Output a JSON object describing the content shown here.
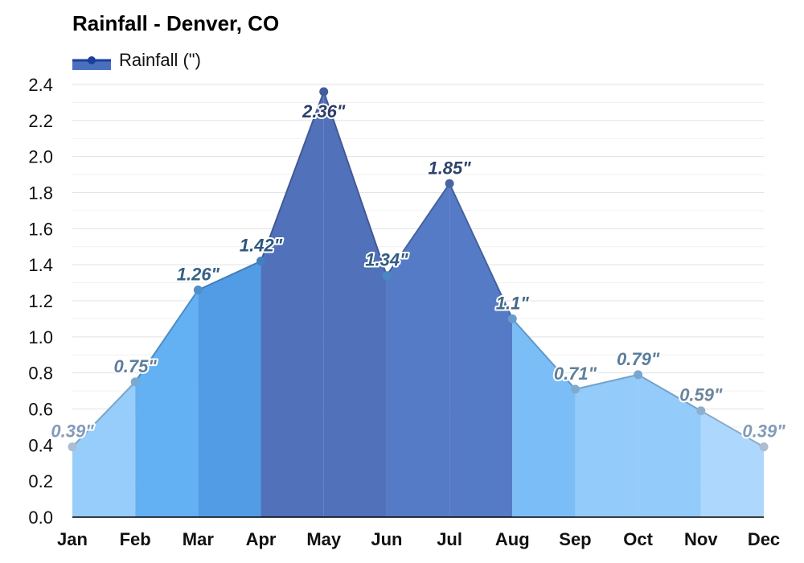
{
  "chart_data": {
    "type": "area",
    "title": "Rainfall - Denver, CO",
    "legend": {
      "label": "Rainfall (\")",
      "placement": "top-left"
    },
    "categories": [
      "Jan",
      "Feb",
      "Mar",
      "Apr",
      "May",
      "Jun",
      "Jul",
      "Aug",
      "Sep",
      "Oct",
      "Nov",
      "Dec"
    ],
    "series": [
      {
        "name": "Rainfall (\")",
        "values": [
          0.39,
          0.75,
          1.26,
          1.42,
          2.36,
          1.34,
          1.85,
          1.1,
          0.71,
          0.79,
          0.59,
          0.39
        ],
        "labels": [
          "0.39\"",
          "0.75\"",
          "1.26\"",
          "1.42\"",
          "2.36\"",
          "1.34\"",
          "1.85\"",
          "1.1\"",
          "0.71\"",
          "0.79\"",
          "0.59\"",
          "0.39\""
        ]
      }
    ],
    "yticks": [
      "0.0",
      "0.2",
      "0.4",
      "0.6",
      "0.8",
      "1.0",
      "1.2",
      "1.4",
      "1.6",
      "1.8",
      "2.0",
      "2.2",
      "2.4"
    ],
    "ylim": [
      0,
      2.4
    ],
    "xlabel": "",
    "ylabel": "",
    "grid": true
  },
  "colors": {
    "legend_line": "#1a3f99",
    "legend_fill": "#4a6fbf",
    "grid": "#e6e6e6",
    "axis": "#000000"
  }
}
